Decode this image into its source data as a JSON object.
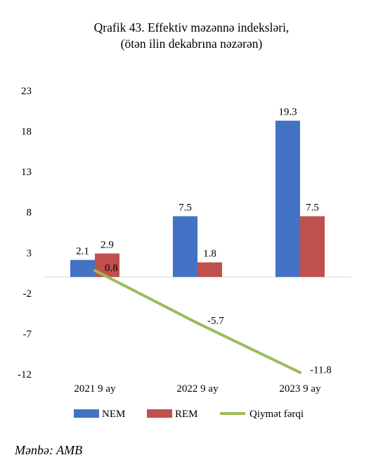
{
  "title_line1": "Qrafik 43. Effektiv məzənnə indeksləri,",
  "title_line2": "(ötən ilin dekabrına nəzərən)",
  "source": "Mənbə: AMB",
  "chart_data": {
    "type": "bar",
    "categories": [
      "2021 9 ay",
      "2022 9 ay",
      "2023 9 ay"
    ],
    "y_ticks": [
      23,
      18,
      13,
      8,
      3,
      -2,
      -7,
      -12
    ],
    "ylim": [
      -12,
      23
    ],
    "series": [
      {
        "name": "NEM",
        "kind": "bar",
        "color": "#4472c4",
        "values": [
          2.1,
          7.5,
          19.3
        ],
        "labels": [
          "2.1",
          "7.5",
          "19.3"
        ]
      },
      {
        "name": "REM",
        "kind": "bar",
        "color": "#c0504d",
        "values": [
          2.9,
          1.8,
          7.5
        ],
        "labels": [
          "2.9",
          "1.8",
          "7.5"
        ]
      },
      {
        "name": "Qiymət fərqi",
        "kind": "line",
        "color": "#9bbb59",
        "values": [
          0.8,
          -5.7,
          -11.8
        ],
        "labels": [
          "0.8",
          "-5.7",
          "-11.8"
        ]
      }
    ],
    "grid": false,
    "legend_position": "bottom"
  }
}
